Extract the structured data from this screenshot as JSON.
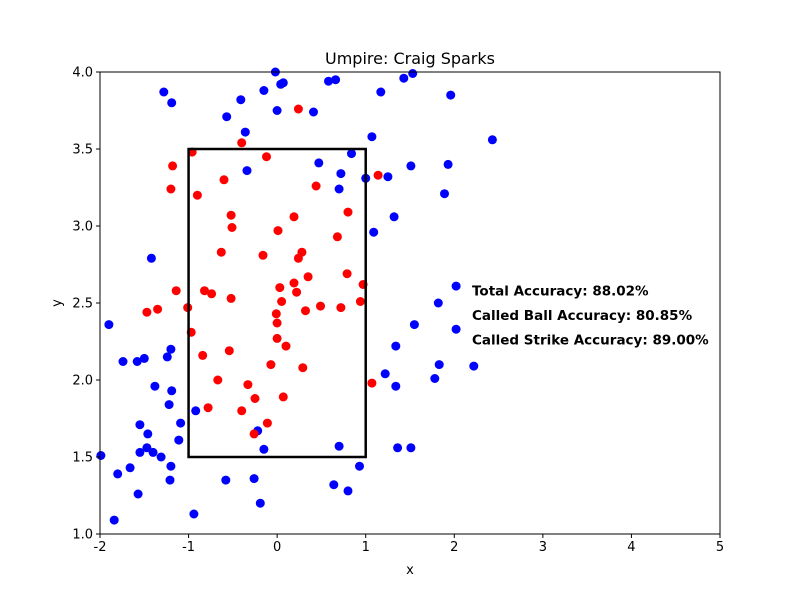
{
  "chart_data": {
    "type": "scatter",
    "title": "Umpire: Craig Sparks",
    "xlabel": "x",
    "ylabel": "y",
    "xlim": [
      -2,
      5
    ],
    "ylim": [
      1.0,
      4.0
    ],
    "xticks": [
      "-2",
      "-1",
      "0",
      "1",
      "2",
      "3",
      "4",
      "5"
    ],
    "yticks": [
      "1.0",
      "1.5",
      "2.0",
      "2.5",
      "3.0",
      "3.5",
      "4.0"
    ],
    "grid": false,
    "strike_zone": {
      "x": [
        -1,
        1
      ],
      "y": [
        1.5,
        3.5
      ]
    },
    "annotations": [
      {
        "text": "Total Accuracy: 88.02%",
        "x": 2.2,
        "y": 2.55
      },
      {
        "text": "Called Ball Accuracy: 80.85%",
        "x": 2.2,
        "y": 2.39
      },
      {
        "text": "Called Strike Accuracy: 89.00%",
        "x": 2.2,
        "y": 2.23
      }
    ],
    "series": [
      {
        "color": "#0000ff",
        "points": [
          [
            -0.02,
            4.0
          ],
          [
            0.04,
            3.92
          ],
          [
            0.07,
            3.93
          ],
          [
            0.58,
            3.94
          ],
          [
            0.66,
            3.95
          ],
          [
            1.43,
            3.96
          ],
          [
            1.53,
            3.99
          ],
          [
            -1.28,
            3.87
          ],
          [
            -1.19,
            3.8
          ],
          [
            -0.41,
            3.82
          ],
          [
            -0.15,
            3.88
          ],
          [
            1.17,
            3.87
          ],
          [
            1.96,
            3.85
          ],
          [
            -0.57,
            3.71
          ],
          [
            0.0,
            3.75
          ],
          [
            0.41,
            3.74
          ],
          [
            -0.36,
            3.61
          ],
          [
            1.07,
            3.58
          ],
          [
            2.43,
            3.56
          ],
          [
            0.84,
            3.47
          ],
          [
            0.47,
            3.41
          ],
          [
            1.51,
            3.39
          ],
          [
            1.93,
            3.4
          ],
          [
            -0.34,
            3.36
          ],
          [
            0.72,
            3.34
          ],
          [
            1.0,
            3.31
          ],
          [
            1.25,
            3.32
          ],
          [
            0.7,
            3.24
          ],
          [
            1.89,
            3.21
          ],
          [
            1.32,
            3.06
          ],
          [
            1.09,
            2.96
          ],
          [
            -1.42,
            2.79
          ],
          [
            2.02,
            2.61
          ],
          [
            1.82,
            2.5
          ],
          [
            -1.9,
            2.36
          ],
          [
            1.55,
            2.36
          ],
          [
            2.02,
            2.33
          ],
          [
            -1.2,
            2.2
          ],
          [
            1.34,
            2.22
          ],
          [
            -1.74,
            2.12
          ],
          [
            -1.58,
            2.12
          ],
          [
            -1.5,
            2.14
          ],
          [
            -1.24,
            2.15
          ],
          [
            1.83,
            2.1
          ],
          [
            2.22,
            2.09
          ],
          [
            1.22,
            2.04
          ],
          [
            1.78,
            2.01
          ],
          [
            -1.38,
            1.96
          ],
          [
            -1.19,
            1.93
          ],
          [
            1.34,
            1.96
          ],
          [
            -1.22,
            1.84
          ],
          [
            -0.92,
            1.8
          ],
          [
            -1.09,
            1.72
          ],
          [
            -1.55,
            1.71
          ],
          [
            -1.46,
            1.65
          ],
          [
            -1.11,
            1.61
          ],
          [
            -0.22,
            1.67
          ],
          [
            -1.47,
            1.56
          ],
          [
            -1.55,
            1.53
          ],
          [
            -1.4,
            1.53
          ],
          [
            -1.31,
            1.5
          ],
          [
            -0.15,
            1.55
          ],
          [
            0.7,
            1.57
          ],
          [
            1.36,
            1.56
          ],
          [
            1.51,
            1.56
          ],
          [
            -1.99,
            1.51
          ],
          [
            -1.66,
            1.43
          ],
          [
            -1.2,
            1.44
          ],
          [
            -1.8,
            1.39
          ],
          [
            -0.58,
            1.35
          ],
          [
            -0.26,
            1.36
          ],
          [
            0.93,
            1.44
          ],
          [
            -1.21,
            1.35
          ],
          [
            0.64,
            1.32
          ],
          [
            0.8,
            1.28
          ],
          [
            -1.57,
            1.26
          ],
          [
            -0.19,
            1.2
          ],
          [
            -0.94,
            1.13
          ],
          [
            -1.84,
            1.09
          ]
        ]
      },
      {
        "color": "#ff0000",
        "points": [
          [
            0.24,
            3.76
          ],
          [
            -0.4,
            3.54
          ],
          [
            -0.96,
            3.48
          ],
          [
            -0.12,
            3.45
          ],
          [
            -1.18,
            3.39
          ],
          [
            1.14,
            3.33
          ],
          [
            -0.6,
            3.3
          ],
          [
            -1.2,
            3.24
          ],
          [
            0.44,
            3.26
          ],
          [
            -0.9,
            3.2
          ],
          [
            0.8,
            3.09
          ],
          [
            -0.52,
            3.07
          ],
          [
            0.19,
            3.06
          ],
          [
            -0.51,
            2.99
          ],
          [
            0.01,
            2.97
          ],
          [
            0.68,
            2.93
          ],
          [
            -0.63,
            2.83
          ],
          [
            0.28,
            2.83
          ],
          [
            -0.16,
            2.81
          ],
          [
            0.24,
            2.79
          ],
          [
            0.79,
            2.69
          ],
          [
            0.35,
            2.67
          ],
          [
            0.19,
            2.63
          ],
          [
            0.97,
            2.62
          ],
          [
            0.03,
            2.6
          ],
          [
            -1.14,
            2.58
          ],
          [
            -0.82,
            2.58
          ],
          [
            0.22,
            2.57
          ],
          [
            -0.74,
            2.56
          ],
          [
            -0.52,
            2.53
          ],
          [
            0.05,
            2.51
          ],
          [
            0.94,
            2.51
          ],
          [
            0.49,
            2.48
          ],
          [
            0.72,
            2.47
          ],
          [
            -1.01,
            2.47
          ],
          [
            -1.35,
            2.46
          ],
          [
            -1.47,
            2.44
          ],
          [
            0.32,
            2.45
          ],
          [
            -0.01,
            2.43
          ],
          [
            0.0,
            2.37
          ],
          [
            -0.97,
            2.31
          ],
          [
            0.0,
            2.27
          ],
          [
            0.1,
            2.22
          ],
          [
            -0.54,
            2.19
          ],
          [
            -0.84,
            2.16
          ],
          [
            -0.07,
            2.1
          ],
          [
            0.29,
            2.08
          ],
          [
            -0.67,
            2.0
          ],
          [
            1.07,
            1.98
          ],
          [
            -0.33,
            1.97
          ],
          [
            -0.25,
            1.88
          ],
          [
            0.07,
            1.89
          ],
          [
            -0.78,
            1.82
          ],
          [
            -0.4,
            1.8
          ],
          [
            -0.11,
            1.72
          ],
          [
            -0.26,
            1.65
          ]
        ]
      }
    ]
  }
}
